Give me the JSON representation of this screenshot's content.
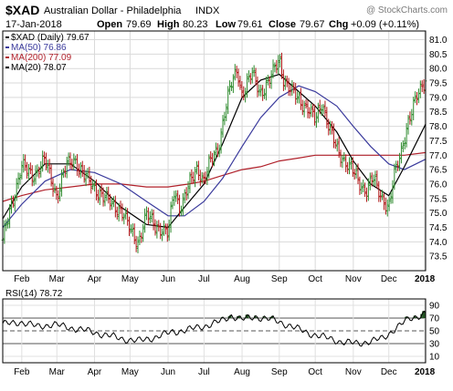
{
  "header": {
    "title": "$XAD",
    "subtitle": "Australian Dollar - Philadelphia",
    "exchange": "INDX",
    "watermark": "@ StockCharts.com",
    "date": "17-Jan-2018",
    "open_label": "Open",
    "open_value": "79.69",
    "high_label": "High",
    "high_value": "80.23",
    "low_label": "Low",
    "low_value": "79.61",
    "close_label": "Close",
    "close_value": "79.67",
    "chg_label": "Chg",
    "chg_value": "+0.09 (+0.11%)"
  },
  "chart_data": [
    {
      "type": "ohlc",
      "name": "price-panel",
      "legend": [
        {
          "label": "$XAD (Daily) 79.67",
          "color": "#000000"
        },
        {
          "label": "MA(50) 76.86",
          "color": "#3a3a9c"
        },
        {
          "label": "MA(200) 77.09",
          "color": "#b0202a"
        },
        {
          "label": "MA(20) 78.07",
          "color": "#000000"
        }
      ],
      "colors": {
        "up": "#2e8b2e",
        "down": "#b01818",
        "ma50": "#3a3a9c",
        "ma200": "#b0202a",
        "ma20": "#000000"
      },
      "legend_position": "top-left",
      "grid": true,
      "ylim": [
        73.0,
        81.3
      ],
      "y_ticks": [
        "73.5",
        "74.0",
        "74.5",
        "75.0",
        "75.5",
        "76.0",
        "76.5",
        "77.0",
        "77.5",
        "78.0",
        "78.5",
        "79.0",
        "79.5",
        "80.0",
        "80.5",
        "81.0"
      ],
      "x_ticks": [
        {
          "label": "Feb",
          "t": 0.045
        },
        {
          "label": "Mar",
          "t": 0.128
        },
        {
          "label": "Apr",
          "t": 0.217
        },
        {
          "label": "May",
          "t": 0.301
        },
        {
          "label": "Jun",
          "t": 0.391
        },
        {
          "label": "Jul",
          "t": 0.476
        },
        {
          "label": "Aug",
          "t": 0.566
        },
        {
          "label": "Sep",
          "t": 0.654
        },
        {
          "label": "Oct",
          "t": 0.739
        },
        {
          "label": "Nov",
          "t": 0.829
        },
        {
          "label": "Dec",
          "t": 0.913
        },
        {
          "label": "2018",
          "t": 0.998
        }
      ],
      "close_path": [
        [
          0.0,
          74.0
        ],
        [
          0.02,
          75.3
        ],
        [
          0.045,
          76.6
        ],
        [
          0.07,
          76.3
        ],
        [
          0.1,
          76.8
        ],
        [
          0.128,
          75.6
        ],
        [
          0.15,
          76.6
        ],
        [
          0.17,
          76.9
        ],
        [
          0.19,
          76.3
        ],
        [
          0.217,
          75.9
        ],
        [
          0.24,
          75.5
        ],
        [
          0.26,
          75.3
        ],
        [
          0.28,
          75.1
        ],
        [
          0.301,
          74.4
        ],
        [
          0.32,
          74.0
        ],
        [
          0.34,
          74.9
        ],
        [
          0.36,
          74.6
        ],
        [
          0.38,
          74.4
        ],
        [
          0.391,
          74.2
        ],
        [
          0.405,
          75.8
        ],
        [
          0.42,
          75.2
        ],
        [
          0.44,
          75.9
        ],
        [
          0.46,
          76.6
        ],
        [
          0.476,
          76.1
        ],
        [
          0.49,
          76.7
        ],
        [
          0.51,
          77.3
        ],
        [
          0.525,
          78.5
        ],
        [
          0.54,
          79.4
        ],
        [
          0.555,
          80.0
        ],
        [
          0.566,
          79.1
        ],
        [
          0.59,
          79.8
        ],
        [
          0.61,
          79.2
        ],
        [
          0.63,
          79.5
        ],
        [
          0.654,
          80.4
        ],
        [
          0.665,
          79.6
        ],
        [
          0.68,
          79.2
        ],
        [
          0.7,
          79.0
        ],
        [
          0.72,
          78.6
        ],
        [
          0.739,
          78.2
        ],
        [
          0.755,
          78.9
        ],
        [
          0.77,
          78.0
        ],
        [
          0.79,
          77.2
        ],
        [
          0.81,
          76.8
        ],
        [
          0.829,
          76.4
        ],
        [
          0.845,
          76.0
        ],
        [
          0.86,
          75.8
        ],
        [
          0.875,
          76.2
        ],
        [
          0.89,
          75.7
        ],
        [
          0.913,
          75.2
        ],
        [
          0.925,
          76.2
        ],
        [
          0.94,
          77.0
        ],
        [
          0.955,
          78.0
        ],
        [
          0.97,
          78.6
        ],
        [
          0.985,
          79.2
        ],
        [
          1.0,
          79.67
        ]
      ],
      "ma50_path": [
        [
          0.0,
          74.5
        ],
        [
          0.045,
          75.3
        ],
        [
          0.1,
          76.1
        ],
        [
          0.16,
          76.5
        ],
        [
          0.217,
          76.4
        ],
        [
          0.28,
          76.0
        ],
        [
          0.34,
          75.4
        ],
        [
          0.391,
          74.9
        ],
        [
          0.43,
          74.9
        ],
        [
          0.476,
          75.4
        ],
        [
          0.52,
          76.2
        ],
        [
          0.566,
          77.3
        ],
        [
          0.61,
          78.3
        ],
        [
          0.654,
          79.0
        ],
        [
          0.7,
          79.4
        ],
        [
          0.739,
          79.2
        ],
        [
          0.79,
          78.7
        ],
        [
          0.829,
          78.0
        ],
        [
          0.87,
          77.3
        ],
        [
          0.913,
          76.7
        ],
        [
          0.95,
          76.5
        ],
        [
          1.0,
          76.86
        ]
      ],
      "ma200_path": [
        [
          0.0,
          75.4
        ],
        [
          0.045,
          75.6
        ],
        [
          0.1,
          75.8
        ],
        [
          0.16,
          75.9
        ],
        [
          0.217,
          76.0
        ],
        [
          0.28,
          76.0
        ],
        [
          0.34,
          75.9
        ],
        [
          0.391,
          75.9
        ],
        [
          0.44,
          76.0
        ],
        [
          0.476,
          76.1
        ],
        [
          0.52,
          76.3
        ],
        [
          0.566,
          76.5
        ],
        [
          0.61,
          76.6
        ],
        [
          0.654,
          76.8
        ],
        [
          0.7,
          76.9
        ],
        [
          0.739,
          77.0
        ],
        [
          0.79,
          77.0
        ],
        [
          0.829,
          77.0
        ],
        [
          0.87,
          77.0
        ],
        [
          0.913,
          77.0
        ],
        [
          0.95,
          77.0
        ],
        [
          1.0,
          77.09
        ]
      ],
      "ma20_path": [
        [
          0.0,
          74.8
        ],
        [
          0.045,
          75.9
        ],
        [
          0.1,
          76.7
        ],
        [
          0.16,
          76.7
        ],
        [
          0.217,
          76.1
        ],
        [
          0.28,
          75.2
        ],
        [
          0.34,
          74.6
        ],
        [
          0.391,
          74.5
        ],
        [
          0.43,
          75.2
        ],
        [
          0.476,
          76.0
        ],
        [
          0.52,
          77.4
        ],
        [
          0.566,
          79.0
        ],
        [
          0.61,
          79.6
        ],
        [
          0.654,
          79.8
        ],
        [
          0.7,
          79.2
        ],
        [
          0.739,
          78.7
        ],
        [
          0.79,
          77.8
        ],
        [
          0.829,
          76.8
        ],
        [
          0.87,
          76.0
        ],
        [
          0.913,
          75.6
        ],
        [
          0.95,
          76.6
        ],
        [
          1.0,
          78.07
        ]
      ]
    },
    {
      "type": "line",
      "name": "rsi-panel",
      "legend": [
        {
          "label": "RSI(14) 78.72",
          "color": "#000000"
        }
      ],
      "ylim": [
        0,
        100
      ],
      "y_ticks": [
        "10",
        "30",
        "50",
        "70",
        "90"
      ],
      "reference_lines": [
        30,
        50,
        70
      ],
      "x_ticks": [
        "Feb",
        "Mar",
        "Apr",
        "May",
        "Jun",
        "Jul",
        "Aug",
        "Sep",
        "Oct",
        "Nov",
        "Dec",
        "2018"
      ],
      "overbought_fill": "#1b4f1b",
      "rsi_path": [
        [
          0.0,
          60
        ],
        [
          0.04,
          64
        ],
        [
          0.08,
          57
        ],
        [
          0.12,
          60
        ],
        [
          0.16,
          55
        ],
        [
          0.2,
          50
        ],
        [
          0.24,
          44
        ],
        [
          0.28,
          38
        ],
        [
          0.32,
          34
        ],
        [
          0.36,
          40
        ],
        [
          0.4,
          48
        ],
        [
          0.44,
          52
        ],
        [
          0.48,
          58
        ],
        [
          0.52,
          66
        ],
        [
          0.54,
          74
        ],
        [
          0.566,
          68
        ],
        [
          0.6,
          72
        ],
        [
          0.64,
          67
        ],
        [
          0.68,
          58
        ],
        [
          0.72,
          47
        ],
        [
          0.76,
          40
        ],
        [
          0.8,
          33
        ],
        [
          0.84,
          30
        ],
        [
          0.87,
          34
        ],
        [
          0.9,
          38
        ],
        [
          0.93,
          55
        ],
        [
          0.96,
          68
        ],
        [
          0.985,
          74
        ],
        [
          1.0,
          78.72
        ]
      ]
    }
  ]
}
